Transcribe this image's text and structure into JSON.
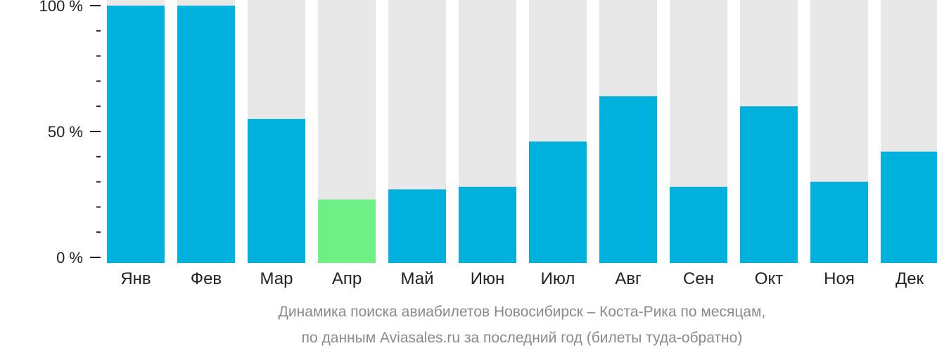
{
  "chart_data": {
    "type": "bar",
    "categories": [
      "Янв",
      "Фев",
      "Мар",
      "Апр",
      "Май",
      "Июн",
      "Июл",
      "Авг",
      "Сен",
      "Окт",
      "Ноя",
      "Дек"
    ],
    "values": [
      100,
      100,
      55,
      23,
      27,
      28,
      46,
      64,
      28,
      60,
      30,
      42
    ],
    "highlight_index": 3,
    "ylim": [
      0,
      100
    ],
    "yticks": [
      "100 %",
      "50 %",
      "0 %"
    ],
    "ytick_values": [
      100,
      50,
      0
    ],
    "caption_lines": [
      "Динамика поиска авиабилетов Новосибирск – Коста-Рика по месяцам,",
      "по данным Aviasales.ru за последний год (билеты туда-обратно)"
    ],
    "colors": {
      "bar": "#00b0dd",
      "bar_highlight": "#6ef086",
      "background_bar": "#e8e8e8",
      "axis": "#222222",
      "caption": "#8a8a8a"
    }
  }
}
